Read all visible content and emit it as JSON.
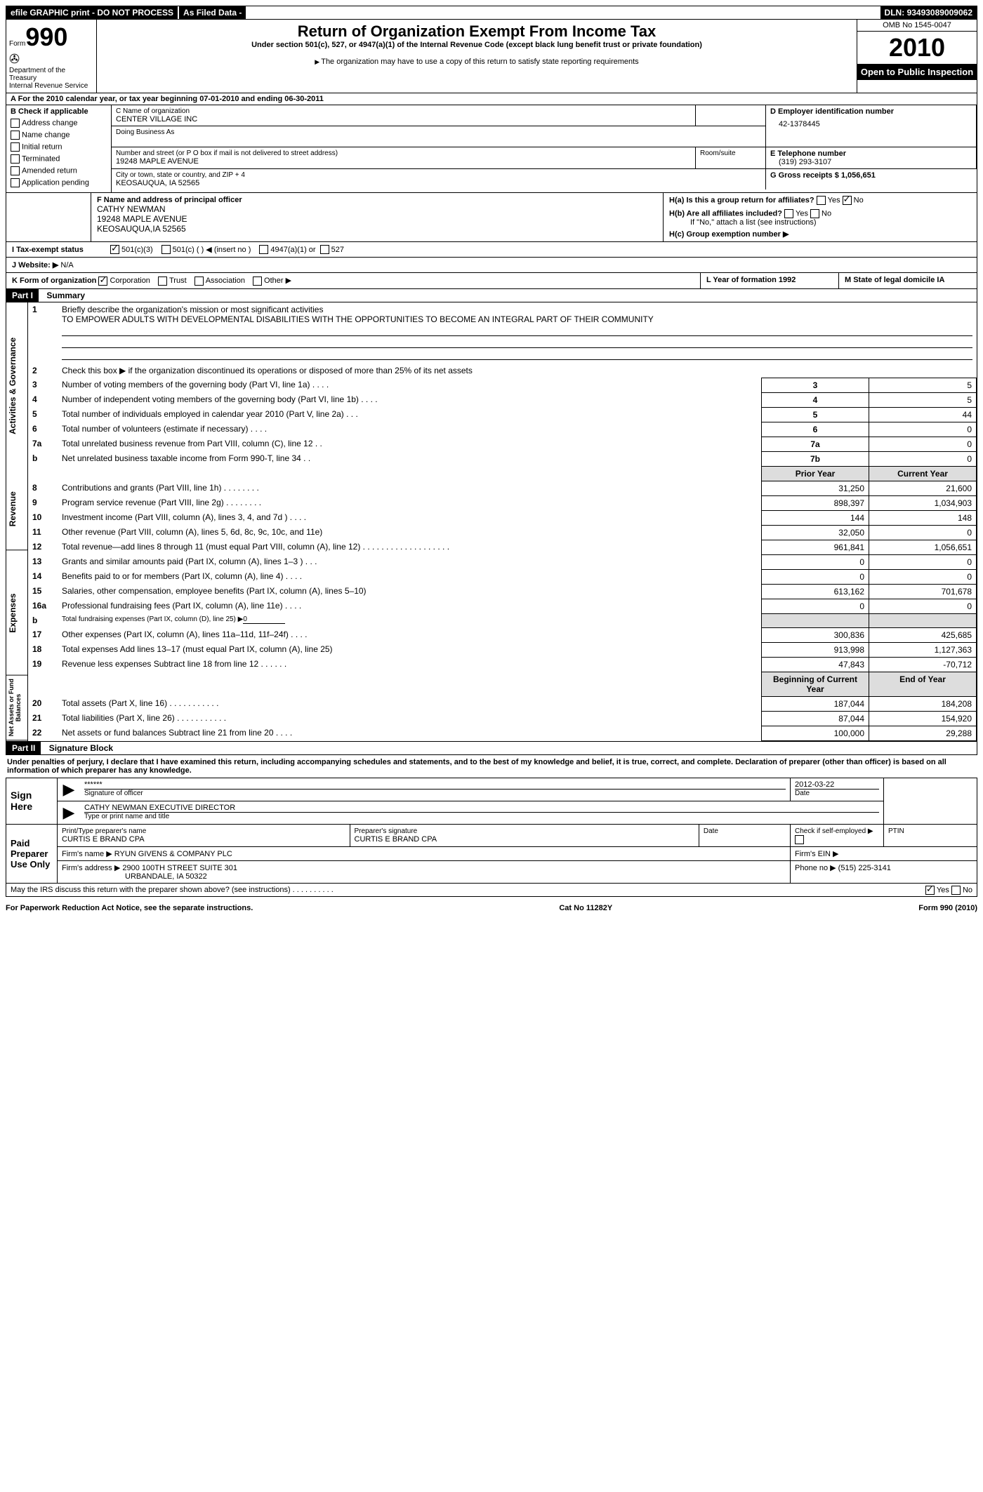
{
  "header": {
    "efile": "efile GRAPHIC print - DO NOT PROCESS",
    "asfiled": "As Filed Data -",
    "dln_label": "DLN:",
    "dln": "93493089009062"
  },
  "form": {
    "form_label": "Form",
    "form_no": "990",
    "dept": "Department of the Treasury",
    "irs": "Internal Revenue Service",
    "title": "Return of Organization Exempt From Income Tax",
    "subtitle": "Under section 501(c), 527, or 4947(a)(1) of the Internal Revenue Code (except black lung benefit trust or private foundation)",
    "note": "The organization may have to use a copy of this return to satisfy state reporting requirements",
    "omb": "OMB No 1545-0047",
    "year": "2010",
    "inspect": "Open to Public Inspection"
  },
  "a": "A  For the 2010 calendar year, or tax year beginning 07-01-2010   and ending 06-30-2011",
  "b": {
    "check_label": "B Check if applicable",
    "opts": [
      "Address change",
      "Name change",
      "Initial return",
      "Terminated",
      "Amended return",
      "Application pending"
    ],
    "c_name_label": "C Name of organization",
    "c_name": "CENTER VILLAGE INC",
    "dba_label": "Doing Business As",
    "addr_label": "Number and street (or P O  box if mail is not delivered to street address)",
    "addr": "19248 MAPLE AVENUE",
    "room_label": "Room/suite",
    "city_label": "City or town, state or country, and ZIP + 4",
    "city": "KEOSAUQUA, IA  52565",
    "d_label": "D Employer identification number",
    "d_val": "42-1378445",
    "e_label": "E Telephone number",
    "e_val": "(319) 293-3107",
    "g_label": "G Gross receipts $ 1,056,651",
    "f_label": "F  Name and address of principal officer",
    "f_name": "CATHY NEWMAN",
    "f_addr1": "19248 MAPLE AVENUE",
    "f_addr2": "KEOSAUQUA,IA  52565",
    "ha_label": "H(a)  Is this a group return for affiliates?",
    "hb_label": "H(b)  Are all affiliates included?",
    "hb_note": "If \"No,\" attach a list  (see instructions)",
    "hc_label": "H(c)   Group exemption number ▶",
    "yes": "Yes",
    "no": "No"
  },
  "i": {
    "label": "I   Tax-exempt status",
    "opt1": "501(c)(3)",
    "opt2": "501(c) (   ) ◀ (insert no )",
    "opt3": "4947(a)(1) or",
    "opt4": "527"
  },
  "j": {
    "label": "J   Website: ▶",
    "val": "N/A"
  },
  "k": {
    "label": "K Form of organization",
    "opts": [
      "Corporation",
      "Trust",
      "Association",
      "Other ▶"
    ],
    "l_label": "L Year of formation  1992",
    "m_label": "M State of legal domicile  IA"
  },
  "part1": {
    "tab": "Part I",
    "title": "Summary",
    "side_ag": "Activities & Governance",
    "side_rev": "Revenue",
    "side_exp": "Expenses",
    "side_net": "Net Assets or Fund Balances",
    "q1": "Briefly describe the organization's mission or most significant activities",
    "mission": "TO EMPOWER ADULTS WITH DEVELOPMENTAL DISABILITIES WITH THE OPPORTUNITIES TO BECOME AN INTEGRAL PART OF THEIR COMMUNITY",
    "q2": "Check this box ▶   if the organization discontinued its operations or disposed of more than 25% of its net assets",
    "rows_ag": [
      {
        "n": "3",
        "t": "Number of voting members of the governing body (Part VI, line 1a)  .    .    .    .",
        "k": "3",
        "v": "5"
      },
      {
        "n": "4",
        "t": "Number of independent voting members of the governing body (Part VI, line 1b)  .    .    .    .",
        "k": "4",
        "v": "5"
      },
      {
        "n": "5",
        "t": "Total number of individuals employed in calendar year 2010 (Part V, line 2a)  .    .    .",
        "k": "5",
        "v": "44"
      },
      {
        "n": "6",
        "t": "Total number of volunteers (estimate if necessary)  .    .    .    .",
        "k": "6",
        "v": "0"
      },
      {
        "n": "7a",
        "t": "Total unrelated business revenue from Part VIII, column (C), line 12   .    .",
        "k": "7a",
        "v": "0"
      },
      {
        "n": "b",
        "t": "Net unrelated business taxable income from Form 990-T, line 34   .    .",
        "k": "7b",
        "v": "0"
      }
    ],
    "prior": "Prior Year",
    "current": "Current Year",
    "rows_rev": [
      {
        "n": "8",
        "t": "Contributions and grants (Part VIII, line 1h)   .    .    .    .    .    .    .    .",
        "p": "31,250",
        "c": "21,600"
      },
      {
        "n": "9",
        "t": "Program service revenue (Part VIII, line 2g)   .    .    .    .    .    .    .    .",
        "p": "898,397",
        "c": "1,034,903"
      },
      {
        "n": "10",
        "t": "Investment income (Part VIII, column (A), lines 3, 4, and 7d )   .    .    .    .",
        "p": "144",
        "c": "148"
      },
      {
        "n": "11",
        "t": "Other revenue (Part VIII, column (A), lines 5, 6d, 8c, 9c, 10c, and 11e)",
        "p": "32,050",
        "c": "0"
      },
      {
        "n": "12",
        "t": "Total revenue—add lines 8 through 11 (must equal Part VIII, column (A), line 12) .    .    .    .    .    .    .    .    .    .    .    .    .    .    .    .    .    .    .",
        "p": "961,841",
        "c": "1,056,651"
      }
    ],
    "rows_exp": [
      {
        "n": "13",
        "t": "Grants and similar amounts paid (Part IX, column (A), lines 1–3 )  .    .    .",
        "p": "0",
        "c": "0"
      },
      {
        "n": "14",
        "t": "Benefits paid to or for members (Part IX, column (A), line 4)   .    .    .    .",
        "p": "0",
        "c": "0"
      },
      {
        "n": "15",
        "t": "Salaries, other compensation, employee benefits (Part IX, column (A), lines 5–10)",
        "p": "613,162",
        "c": "701,678"
      },
      {
        "n": "16a",
        "t": "Professional fundraising fees (Part IX, column (A), line 11e)  .    .    .    .",
        "p": "0",
        "c": "0"
      },
      {
        "n": "b",
        "t": "Total fundraising expenses (Part IX, column (D), line 25) ▶",
        "p": "",
        "c": ""
      },
      {
        "n": "17",
        "t": "Other expenses (Part IX, column (A), lines 11a–11d, 11f–24f)   .    .    .    .",
        "p": "300,836",
        "c": "425,685"
      },
      {
        "n": "18",
        "t": "Total expenses  Add lines 13–17 (must equal Part IX, column (A), line 25)",
        "p": "913,998",
        "c": "1,127,363"
      },
      {
        "n": "19",
        "t": "Revenue less expenses  Subtract line 18 from line 12  .    .    .    .    .    .",
        "p": "47,843",
        "c": "-70,712"
      }
    ],
    "begin": "Beginning of Current Year",
    "end": "End of Year",
    "rows_net": [
      {
        "n": "20",
        "t": "Total assets (Part X, line 16)   .    .    .    .    .    .    .    .    .    .    .",
        "p": "187,044",
        "c": "184,208"
      },
      {
        "n": "21",
        "t": "Total liabilities (Part X, line 26)  .    .    .    .    .    .    .    .    .    .    .",
        "p": "87,044",
        "c": "154,920"
      },
      {
        "n": "22",
        "t": "Net assets or fund balances  Subtract line 21 from line 20  .    .    .    .",
        "p": "100,000",
        "c": "29,288"
      }
    ]
  },
  "part2": {
    "tab": "Part II",
    "title": "Signature Block",
    "perjury": "Under penalties of perjury, I declare that I have examined this return, including accompanying schedules and statements, and to the best of my knowledge and belief, it is true, correct, and complete. Declaration of preparer (other than officer) is based on all information of which preparer has any knowledge.",
    "sign_here": "Sign Here",
    "sig_stars": "******",
    "sig_off": "Signature of officer",
    "sig_date": "2012-03-22",
    "date_label": "Date",
    "officer_name": "CATHY NEWMAN EXECUTIVE DIRECTOR",
    "type_name": "Type or print name and title",
    "paid": "Paid Preparer Use Only",
    "prep_name_label": "Print/Type preparer's name",
    "prep_name": "CURTIS E BRAND CPA",
    "prep_sig_label": "Preparer's signature",
    "prep_sig": "CURTIS E BRAND CPA",
    "self_label": "Check if self-employed ▶",
    "ptin_label": "PTIN",
    "firm_name": "Firm's name  ▶ RYUN GIVENS & COMPANY PLC",
    "firm_ein": "Firm's EIN   ▶",
    "firm_addr_label": "Firm's address ▶ 2900 100TH STREET SUITE 301",
    "firm_city": "URBANDALE, IA  50322",
    "phone": "Phone no  ▶  (515) 225-3141",
    "discuss": "May the IRS discuss this return with the preparer shown above? (see instructions)   .    .    .    .    .    .    .    .    .    ."
  },
  "footer": {
    "left": "For Paperwork Reduction Act Notice, see the separate instructions.",
    "mid": "Cat No 11282Y",
    "right": "Form 990 (2010)"
  }
}
